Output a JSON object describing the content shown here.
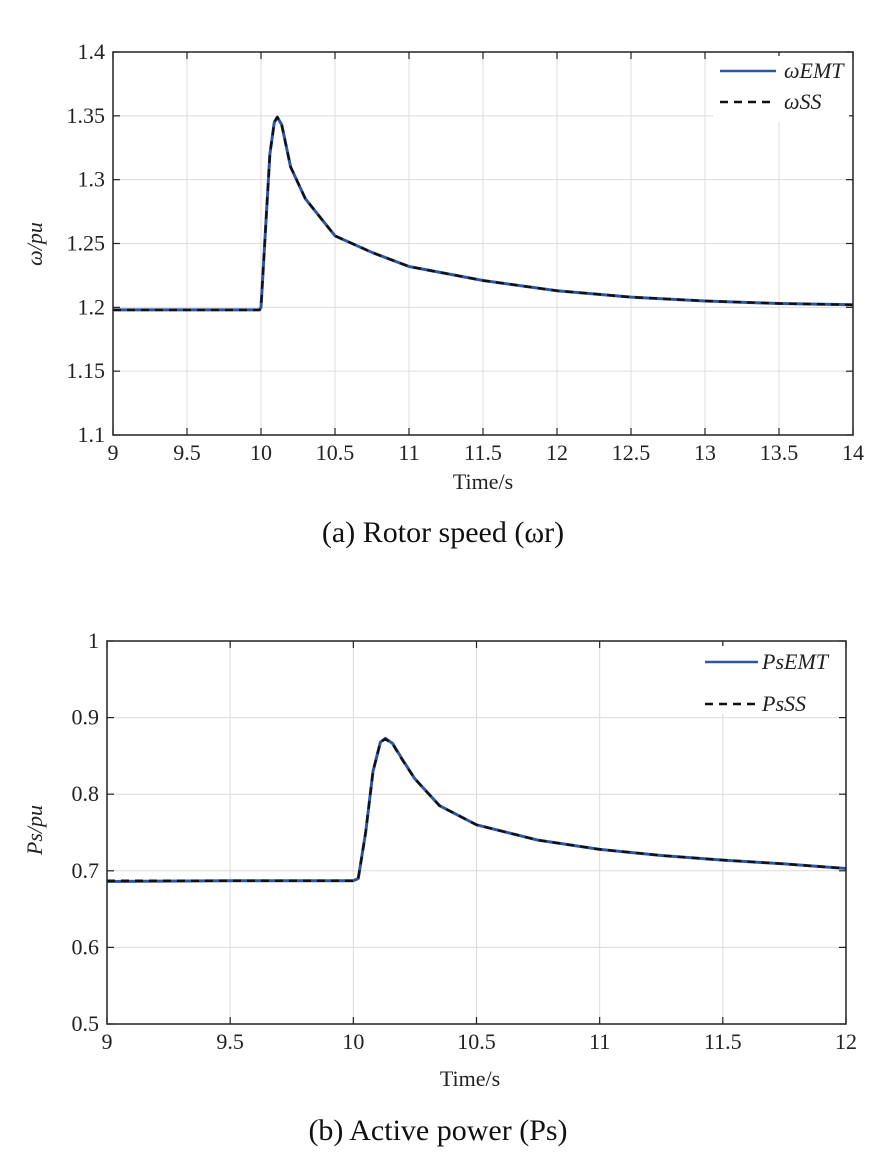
{
  "chart_data": [
    {
      "type": "line",
      "xlabel": "Time/s",
      "ylabel": "ω/pu",
      "caption": "(a) Rotor speed (ωr)",
      "xlim": [
        9,
        14
      ],
      "ylim": [
        1.1,
        1.4
      ],
      "xticks": [
        9,
        9.5,
        10,
        10.5,
        11,
        11.5,
        12,
        12.5,
        13,
        13.5,
        14
      ],
      "xtick_labels": [
        "9",
        "9.5",
        "10",
        "10.5",
        "11",
        "11.5",
        "12",
        "12.5",
        "13",
        "13.5",
        "14"
      ],
      "yticks": [
        1.1,
        1.15,
        1.2,
        1.25,
        1.3,
        1.35,
        1.4
      ],
      "ytick_labels": [
        "1.1",
        "1.15",
        "1.2",
        "1.25",
        "1.3",
        "1.35",
        "1.4"
      ],
      "grid": true,
      "legend_position": "top-right",
      "series": [
        {
          "name": "ωEMT",
          "color": "#2f56a3",
          "style": "solid",
          "x": [
            9,
            9.5,
            9.99,
            10.0,
            10.03,
            10.06,
            10.09,
            10.11,
            10.14,
            10.2,
            10.3,
            10.5,
            10.75,
            11,
            11.5,
            12,
            12.5,
            13,
            13.5,
            14
          ],
          "y": [
            1.198,
            1.198,
            1.198,
            1.2,
            1.26,
            1.32,
            1.345,
            1.349,
            1.343,
            1.31,
            1.285,
            1.256,
            1.243,
            1.232,
            1.221,
            1.213,
            1.208,
            1.205,
            1.203,
            1.202
          ]
        },
        {
          "name": "ωSS",
          "color": "#111111",
          "style": "dashed",
          "x": [
            9,
            9.5,
            9.99,
            10.0,
            10.03,
            10.06,
            10.09,
            10.11,
            10.14,
            10.2,
            10.3,
            10.5,
            10.75,
            11,
            11.5,
            12,
            12.5,
            13,
            13.5,
            14
          ],
          "y": [
            1.198,
            1.198,
            1.198,
            1.2,
            1.26,
            1.32,
            1.345,
            1.349,
            1.343,
            1.31,
            1.285,
            1.256,
            1.243,
            1.232,
            1.221,
            1.213,
            1.208,
            1.205,
            1.203,
            1.202
          ]
        }
      ]
    },
    {
      "type": "line",
      "xlabel": "Time/s",
      "ylabel": "Ps/pu",
      "caption": "(b) Active power (Ps)",
      "xlim": [
        9,
        12
      ],
      "ylim": [
        0.5,
        1
      ],
      "xticks": [
        9,
        9.5,
        10,
        10.5,
        11,
        11.5,
        12
      ],
      "xtick_labels": [
        "9",
        "9.5",
        "10",
        "10.5",
        "11",
        "11.5",
        "12"
      ],
      "yticks": [
        0.5,
        0.6,
        0.7,
        0.8,
        0.9,
        1
      ],
      "ytick_labels": [
        "0.5",
        "0.6",
        "0.7",
        "0.8",
        "0.9",
        "1"
      ],
      "grid": true,
      "legend_position": "top-right",
      "series": [
        {
          "name": "PsEMT",
          "color": "#2f56a3",
          "style": "solid",
          "x": [
            9,
            9.5,
            10.0,
            10.02,
            10.05,
            10.08,
            10.11,
            10.13,
            10.16,
            10.2,
            10.25,
            10.35,
            10.5,
            10.75,
            11,
            11.25,
            11.5,
            11.75,
            12
          ],
          "y": [
            0.686,
            0.687,
            0.687,
            0.69,
            0.75,
            0.83,
            0.868,
            0.873,
            0.866,
            0.845,
            0.82,
            0.785,
            0.76,
            0.74,
            0.728,
            0.72,
            0.714,
            0.709,
            0.703
          ]
        },
        {
          "name": "PsSS",
          "color": "#111111",
          "style": "dashed",
          "x": [
            9,
            9.5,
            10.0,
            10.02,
            10.05,
            10.08,
            10.11,
            10.13,
            10.16,
            10.2,
            10.25,
            10.35,
            10.5,
            10.75,
            11,
            11.25,
            11.5,
            11.75,
            12
          ],
          "y": [
            0.687,
            0.687,
            0.687,
            0.69,
            0.75,
            0.83,
            0.868,
            0.872,
            0.865,
            0.844,
            0.82,
            0.785,
            0.76,
            0.74,
            0.728,
            0.72,
            0.714,
            0.709,
            0.703
          ]
        }
      ]
    }
  ]
}
